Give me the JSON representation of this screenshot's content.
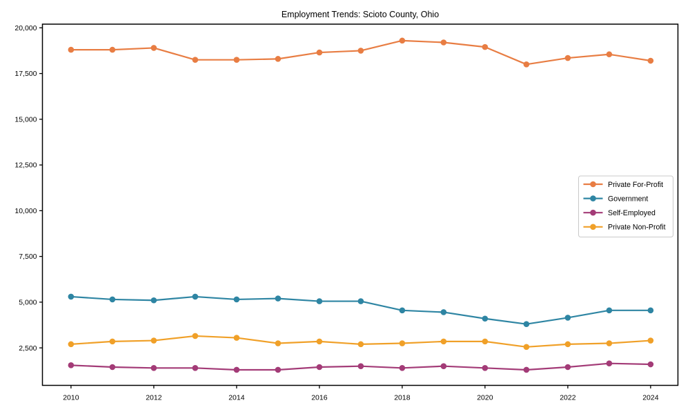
{
  "figure": {
    "background": "#ffffff"
  },
  "chart_data": {
    "type": "line",
    "title": "Employment Trends: Scioto County, Ohio",
    "x": [
      2010,
      2011,
      2012,
      2013,
      2014,
      2015,
      2016,
      2017,
      2018,
      2019,
      2020,
      2021,
      2022,
      2023,
      2024
    ],
    "x_ticks": [
      2010,
      2012,
      2014,
      2016,
      2018,
      2020,
      2022,
      2024
    ],
    "x_tick_labels": [
      "2010",
      "2012",
      "2014",
      "2016",
      "2018",
      "2020",
      "2022",
      "2024"
    ],
    "y_ticks": [
      2500,
      5000,
      7500,
      10000,
      12500,
      15000,
      17500,
      20000
    ],
    "y_tick_labels": [
      "2,500",
      "5,000",
      "7,500",
      "10,000",
      "12,500",
      "15,000",
      "17,500",
      "20,000"
    ],
    "xlim": [
      2009.31,
      2024.66
    ],
    "ylim": [
      450,
      20200
    ],
    "grid": false,
    "legend_position": "center-right",
    "series": [
      {
        "name": "Private For-Profit",
        "color": "#e87d43",
        "values": [
          18800,
          18800,
          18900,
          18250,
          18250,
          18300,
          18650,
          18750,
          19300,
          19200,
          18950,
          18000,
          18350,
          18550,
          18200
        ]
      },
      {
        "name": "Government",
        "color": "#2e85a3",
        "values": [
          5300,
          5150,
          5100,
          5300,
          5150,
          5200,
          5050,
          5050,
          4550,
          4450,
          4100,
          3800,
          4150,
          4550,
          4550
        ]
      },
      {
        "name": "Self-Employed",
        "color": "#a33b77",
        "values": [
          1550,
          1450,
          1400,
          1400,
          1300,
          1300,
          1450,
          1500,
          1400,
          1500,
          1400,
          1300,
          1450,
          1650,
          1600
        ]
      },
      {
        "name": "Private Non-Profit",
        "color": "#f0a028",
        "values": [
          2700,
          2850,
          2900,
          3150,
          3050,
          2750,
          2850,
          2700,
          2750,
          2850,
          2850,
          2550,
          2700,
          2750,
          2900
        ]
      }
    ]
  }
}
